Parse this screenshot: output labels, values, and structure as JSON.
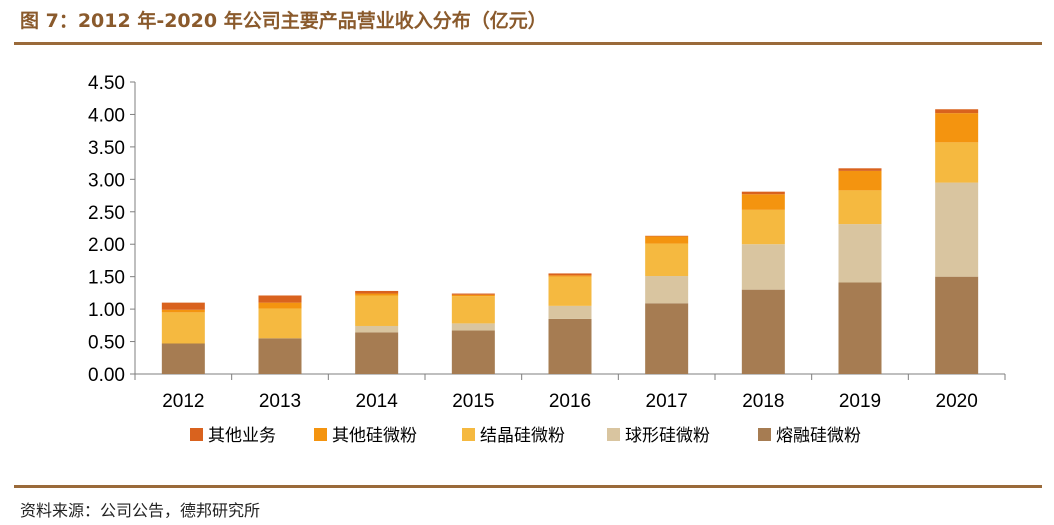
{
  "title": "图 7：2012 年-2020 年公司主要产品营业收入分布（亿元）",
  "source": "资料来源：公司公告，德邦研究所",
  "chart_data": {
    "type": "bar",
    "stacked": true,
    "categories": [
      "2012",
      "2013",
      "2014",
      "2015",
      "2016",
      "2017",
      "2018",
      "2019",
      "2020"
    ],
    "series": [
      {
        "name": "熔融硅微粉",
        "color": "#a67c52",
        "values": [
          0.47,
          0.55,
          0.64,
          0.67,
          0.85,
          1.09,
          1.3,
          1.41,
          1.5
        ]
      },
      {
        "name": "球形硅微粉",
        "color": "#d9c5a0",
        "values": [
          0.0,
          0.0,
          0.1,
          0.11,
          0.2,
          0.42,
          0.7,
          0.9,
          1.45
        ]
      },
      {
        "name": "结晶硅微粉",
        "color": "#f5b940",
        "values": [
          0.48,
          0.46,
          0.47,
          0.42,
          0.45,
          0.5,
          0.53,
          0.52,
          0.62
        ]
      },
      {
        "name": "其他硅微粉",
        "color": "#f4940f",
        "values": [
          0.04,
          0.09,
          0.03,
          0.02,
          0.02,
          0.11,
          0.24,
          0.3,
          0.45
        ]
      },
      {
        "name": "其他业务",
        "color": "#d9621e",
        "values": [
          0.11,
          0.11,
          0.04,
          0.02,
          0.03,
          0.01,
          0.04,
          0.04,
          0.06
        ]
      }
    ],
    "legend_order": [
      "其他业务",
      "其他硅微粉",
      "结晶硅微粉",
      "球形硅微粉",
      "熔融硅微粉"
    ],
    "yticks": [
      "0.00",
      "0.50",
      "1.00",
      "1.50",
      "2.00",
      "2.50",
      "3.00",
      "3.50",
      "4.00",
      "4.50"
    ],
    "ylim": [
      0,
      4.5
    ],
    "grid": false,
    "legend_position": "bottom"
  }
}
